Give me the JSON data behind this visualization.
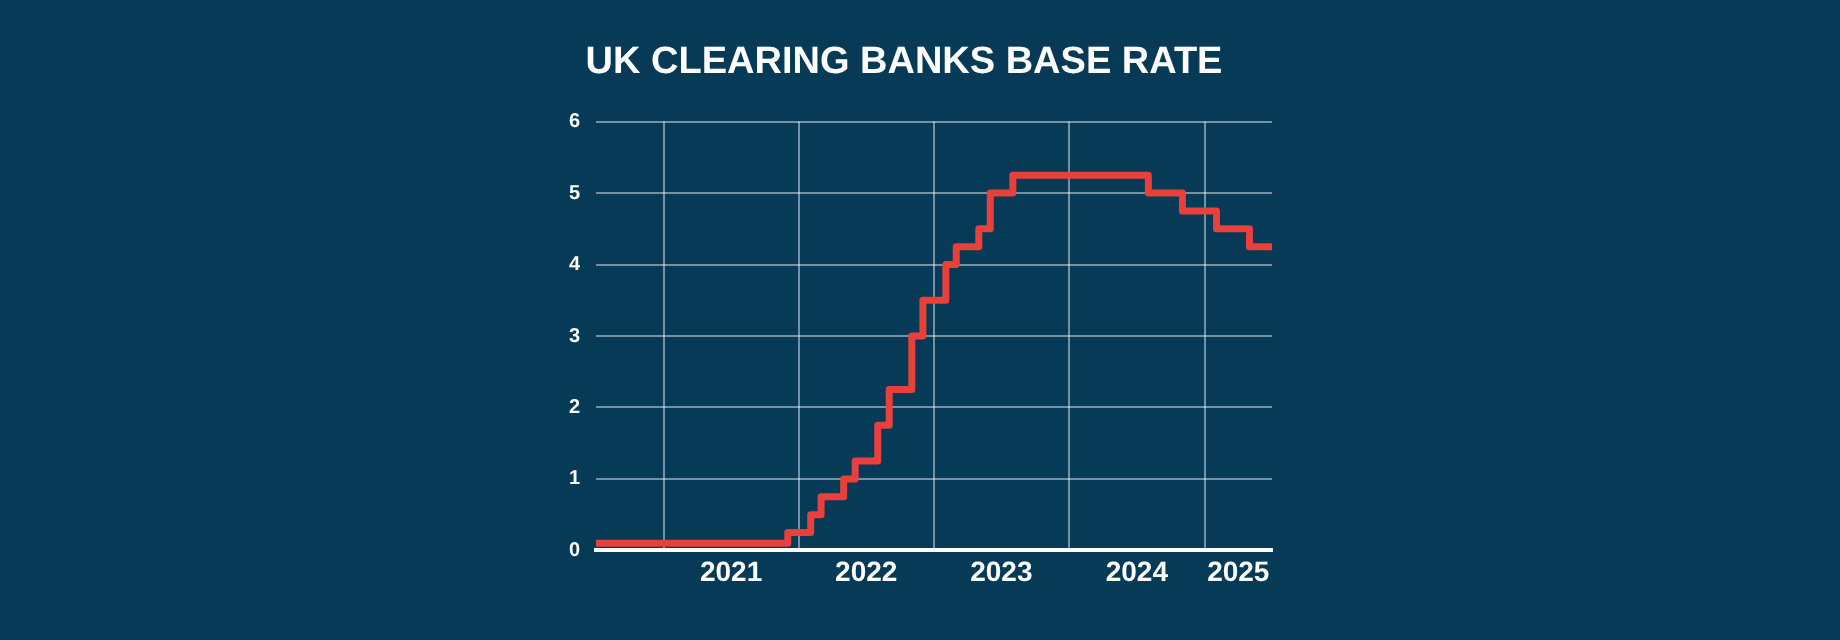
{
  "chart_data": {
    "type": "step",
    "title": "UK CLEARING BANKS BASE RATE",
    "x": [
      "2020-07",
      "2021-12",
      "2022-02",
      "2022-03",
      "2022-05",
      "2022-06",
      "2022-08",
      "2022-09",
      "2022-11",
      "2022-12",
      "2023-02",
      "2023-03",
      "2023-05",
      "2023-06",
      "2023-08",
      "2024-08",
      "2024-11",
      "2025-02",
      "2025-05",
      "2025-07"
    ],
    "series": [
      {
        "color": "#e8413c",
        "values": [
          0.1,
          0.25,
          0.5,
          0.75,
          1,
          1.25,
          1.75,
          2.25,
          3,
          3.5,
          4,
          4.25,
          4.5,
          5,
          5.25,
          5,
          4.75,
          4.5,
          4.25,
          4.25
        ]
      }
    ],
    "xlim": [
      "2020-07",
      "2025-07"
    ],
    "xticks": [
      {
        "value": "2021-01",
        "label": null
      },
      {
        "value": "2021-07",
        "label": "2021"
      },
      {
        "value": "2022-01",
        "label": null
      },
      {
        "value": "2022-07",
        "label": "2022"
      },
      {
        "value": "2023-01",
        "label": null
      },
      {
        "value": "2023-07",
        "label": "2023"
      },
      {
        "value": "2024-01",
        "label": null
      },
      {
        "value": "2024-07",
        "label": "2024"
      },
      {
        "value": "2025-01",
        "label": null
      },
      {
        "value": "2025-04",
        "label": "2025"
      }
    ],
    "ylim": [
      0,
      6
    ],
    "yticks": [
      0,
      1,
      2,
      3,
      4,
      5,
      6
    ],
    "grid": true,
    "legend": false,
    "marker": "none",
    "line_style": "solid"
  }
}
